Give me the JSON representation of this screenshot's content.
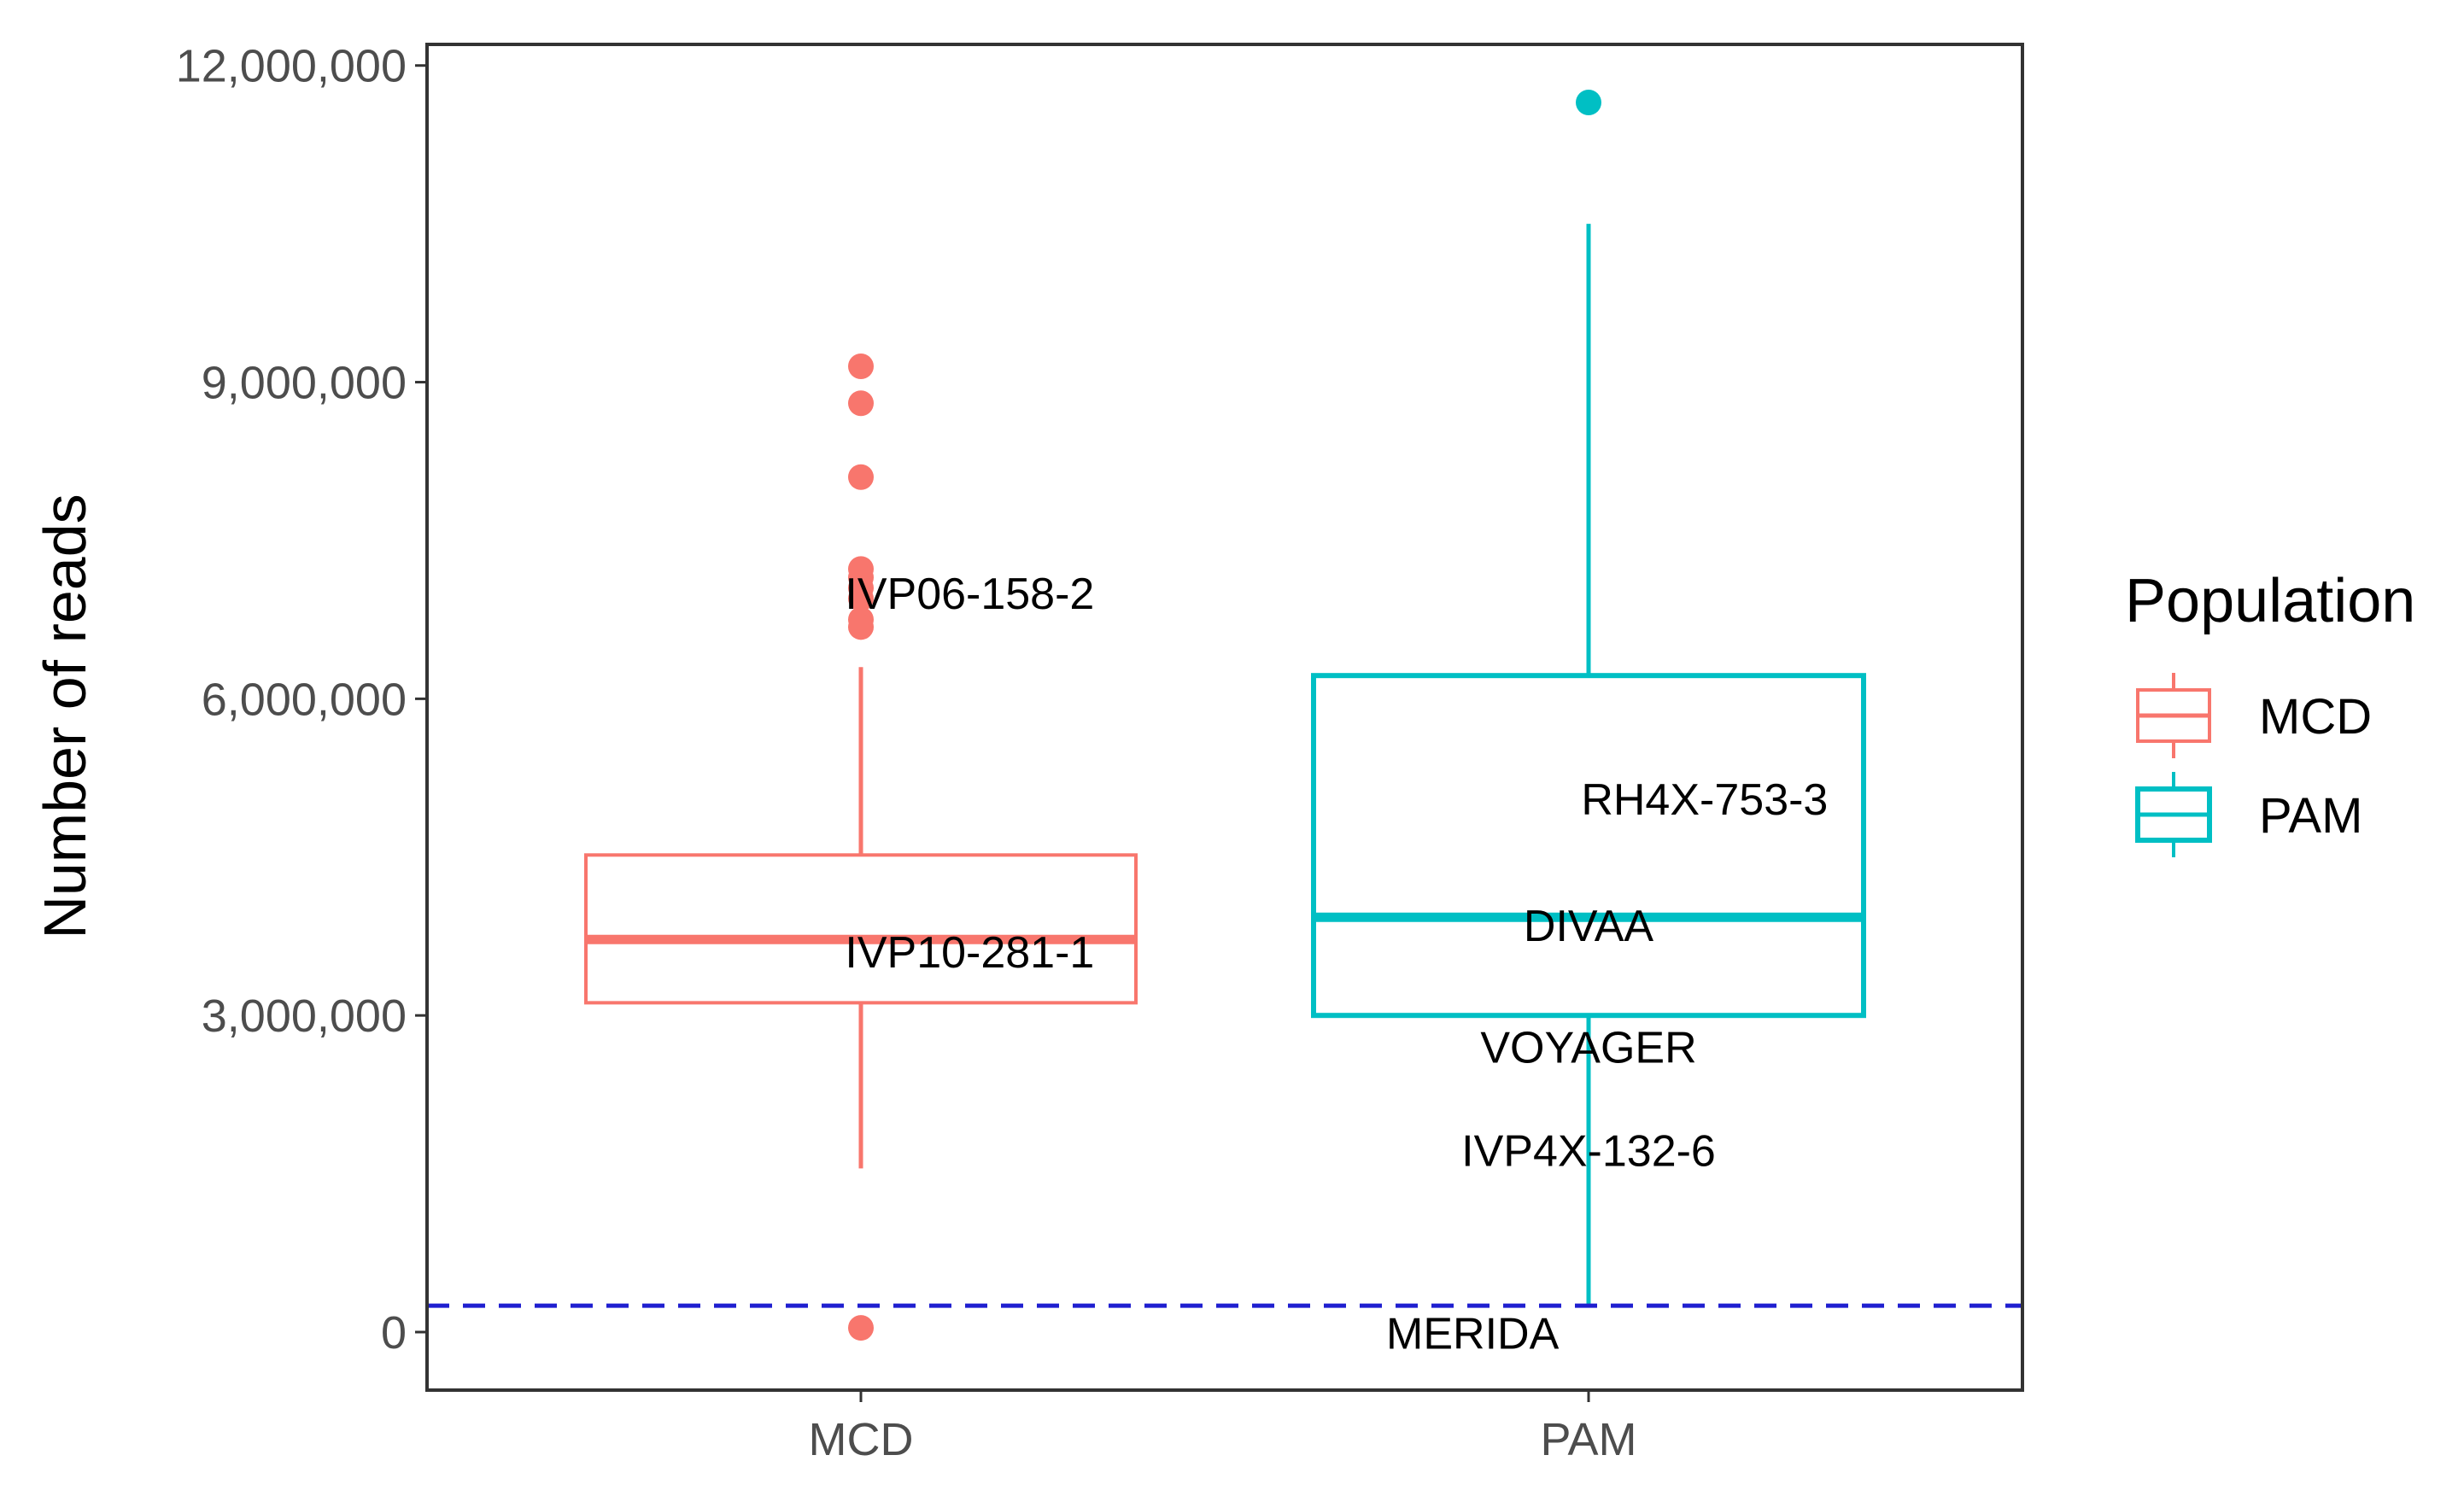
{
  "chart_data": {
    "type": "boxplot",
    "title": "",
    "xlabel": "",
    "ylabel": "Number of reads",
    "ylim": [
      -550000,
      12200000
    ],
    "y_ticks": [
      0,
      3000000,
      6000000,
      9000000,
      12000000
    ],
    "y_tick_labels": [
      "0",
      "3,000,000",
      "6,000,000",
      "9,000,000",
      "12,000,000"
    ],
    "categories": [
      "MCD",
      "PAM"
    ],
    "threshold": 250000,
    "legend": {
      "title": "Population",
      "position": "right",
      "entries": [
        "MCD",
        "PAM"
      ]
    },
    "series": [
      {
        "name": "MCD",
        "color": "#F8766D",
        "box": {
          "lower_whisker": 1550000,
          "q1": 3120000,
          "median": 3720000,
          "q3": 4520000,
          "upper_whisker": 6300000
        },
        "outliers": [
          9150000,
          8800000,
          8100000,
          7230000,
          7150000,
          7050000,
          6950000,
          6750000,
          6680000,
          40000
        ]
      },
      {
        "name": "PAM",
        "color": "#00BFC4",
        "box": {
          "lower_whisker": 250000,
          "q1": 3000000,
          "median": 3930000,
          "q3": 6220000,
          "upper_whisker": 10500000
        },
        "outliers": [
          11650000
        ]
      }
    ],
    "annotations": [
      {
        "text": "IVP06-158-2",
        "category": "MCD",
        "y": 7000000,
        "offset": 0.15
      },
      {
        "text": "IVP10-281-1",
        "category": "MCD",
        "y": 3600000,
        "offset": 0.15
      },
      {
        "text": "RH4X-753-3",
        "category": "PAM",
        "y": 5050000,
        "offset": 0.16
      },
      {
        "text": "DIVAA",
        "category": "PAM",
        "y": 3850000,
        "offset": 0.0
      },
      {
        "text": "VOYAGER",
        "category": "PAM",
        "y": 2700000,
        "offset": 0.0
      },
      {
        "text": "IVP4X-132-6",
        "category": "PAM",
        "y": 1720000,
        "offset": 0.0
      },
      {
        "text": "MERIDA",
        "category": "PAM",
        "y": -10000,
        "offset": -0.16
      }
    ]
  }
}
